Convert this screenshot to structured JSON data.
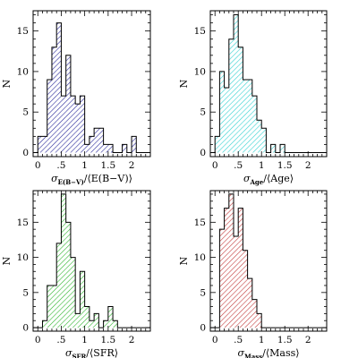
{
  "colors": {
    "axes": "#000000",
    "background": "#ffffff"
  },
  "chart_data": [
    {
      "type": "bar",
      "panel": "top-left",
      "color": "#2a2a9a",
      "bin_width": 0.1,
      "x": [
        0.0,
        0.1,
        0.2,
        0.3,
        0.4,
        0.5,
        0.6,
        0.7,
        0.8,
        0.9,
        1.0,
        1.1,
        1.2,
        1.3,
        1.4,
        1.5,
        1.6,
        1.7,
        1.8,
        1.9,
        2.0
      ],
      "values": [
        2,
        2,
        9,
        13,
        16,
        7,
        12,
        7,
        6,
        7,
        1,
        2,
        3,
        3,
        1,
        1,
        0,
        0,
        1,
        0,
        2
      ],
      "xlabel_main": "σ",
      "xlabel_sub": "E(B−V)",
      "xlabel_rest": "/⟨E(B−V)⟩",
      "ylabel": "N",
      "xlim": [
        -0.1,
        2.4
      ],
      "ylim": [
        -0.5,
        17.5
      ],
      "xticks": [
        0,
        0.5,
        1,
        1.5,
        2
      ],
      "xtick_labels": [
        "0",
        ".5",
        "1",
        "1.5",
        "2"
      ],
      "yticks": [
        0,
        5,
        10,
        15
      ],
      "ytick_labels": [
        "0",
        "5",
        "10",
        "15"
      ]
    },
    {
      "type": "bar",
      "panel": "top-right",
      "color": "#33d1d1",
      "bin_width": 0.1,
      "x": [
        0.0,
        0.1,
        0.2,
        0.3,
        0.4,
        0.5,
        0.6,
        0.7,
        0.8,
        0.9,
        1.0,
        1.1,
        1.2,
        1.3,
        1.4,
        1.5
      ],
      "values": [
        2,
        10,
        8,
        14,
        17,
        13,
        9,
        9,
        7,
        4,
        3,
        0,
        1,
        0,
        1,
        0
      ],
      "xlabel_main": "σ",
      "xlabel_sub": "Age",
      "xlabel_rest": "/⟨Age⟩",
      "ylabel": "N",
      "xlim": [
        -0.1,
        2.4
      ],
      "ylim": [
        -0.5,
        17.5
      ],
      "xticks": [
        0,
        0.5,
        1,
        1.5,
        2
      ],
      "xtick_labels": [
        "0",
        ".5",
        "1",
        "1.5",
        "2"
      ],
      "yticks": [
        0,
        5,
        10,
        15
      ],
      "ytick_labels": [
        "0",
        "5",
        "10",
        "15"
      ]
    },
    {
      "type": "bar",
      "panel": "bottom-left",
      "color": "#2fb52f",
      "bin_width": 0.1,
      "x": [
        0.0,
        0.1,
        0.2,
        0.3,
        0.4,
        0.5,
        0.6,
        0.7,
        0.8,
        0.9,
        1.0,
        1.1,
        1.2,
        1.3,
        1.4,
        1.5,
        1.6,
        1.7
      ],
      "values": [
        0,
        1,
        6,
        6,
        12,
        19,
        15,
        10,
        2,
        8,
        3,
        1,
        2,
        0,
        1,
        3,
        1,
        0
      ],
      "xlabel_main": "σ",
      "xlabel_sub": "SFR",
      "xlabel_rest": "/⟨SFR⟩",
      "ylabel": "N",
      "xlim": [
        -0.1,
        2.4
      ],
      "ylim": [
        -0.5,
        19.5
      ],
      "xticks": [
        0,
        0.5,
        1,
        1.5,
        2
      ],
      "xtick_labels": [
        "0",
        ".5",
        "1",
        "1.5",
        "2"
      ],
      "yticks": [
        0,
        5,
        10,
        15
      ],
      "ytick_labels": [
        "0",
        "5",
        "10",
        "15"
      ]
    },
    {
      "type": "bar",
      "panel": "bottom-right",
      "color": "#c23c3c",
      "bin_width": 0.1,
      "x": [
        0.0,
        0.1,
        0.2,
        0.3,
        0.4,
        0.5,
        0.6,
        0.7,
        0.8,
        0.9
      ],
      "values": [
        0,
        14,
        17,
        19,
        13,
        17,
        11,
        7,
        4,
        2
      ],
      "xlabel_main": "σ",
      "xlabel_sub": "Mass",
      "xlabel_rest": "/⟨Mass⟩",
      "ylabel": "N",
      "xlim": [
        -0.1,
        2.4
      ],
      "ylim": [
        -0.5,
        19.5
      ],
      "xticks": [
        0,
        0.5,
        1,
        1.5,
        2
      ],
      "xtick_labels": [
        "0",
        ".5",
        "1",
        "1.5",
        "2"
      ],
      "yticks": [
        0,
        5,
        10,
        15
      ],
      "ytick_labels": [
        "0",
        "5",
        "10",
        "15"
      ]
    }
  ]
}
